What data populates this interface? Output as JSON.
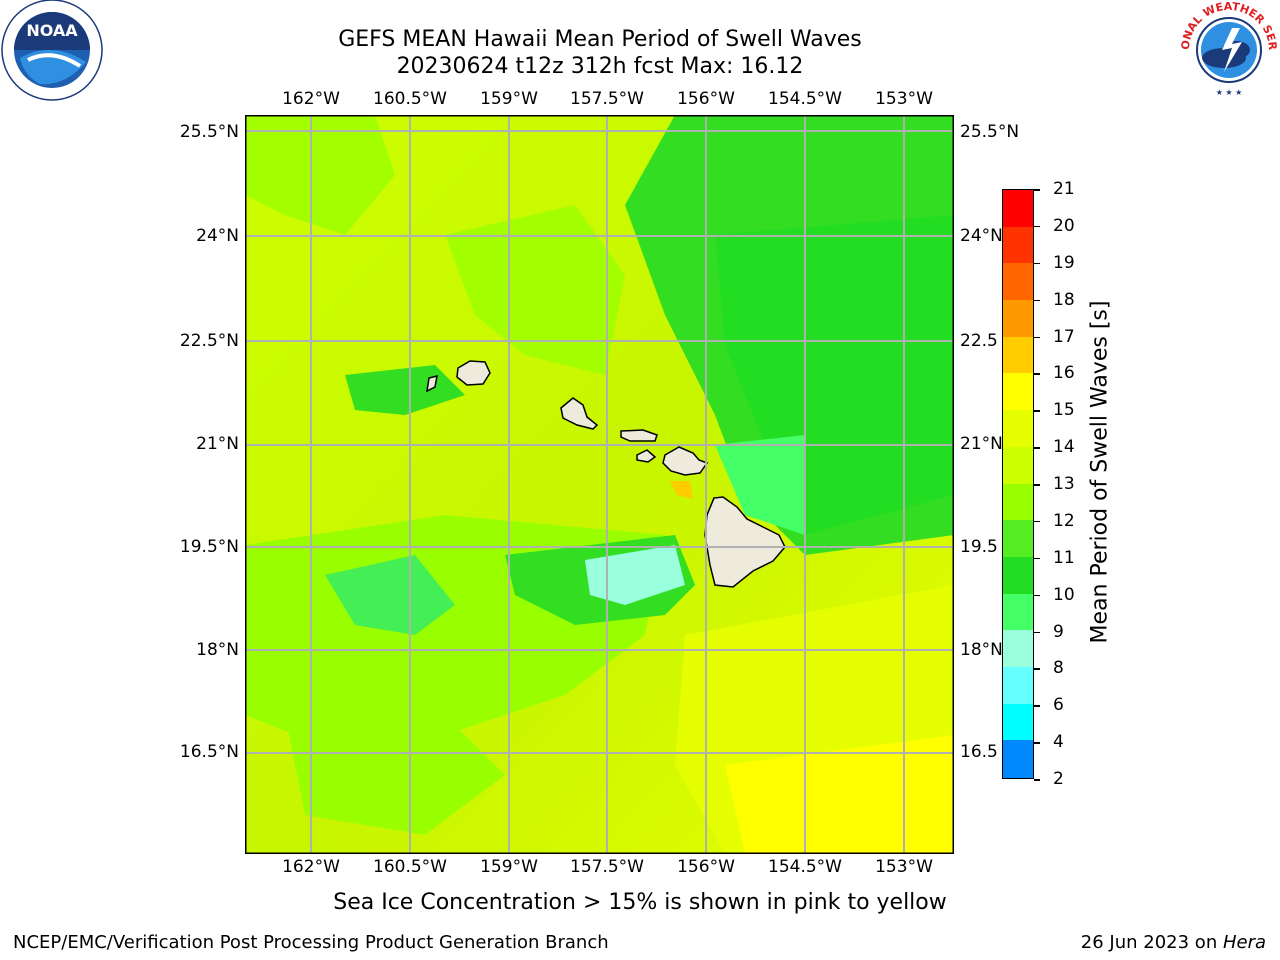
{
  "title_line1": "GEFS MEAN Hawaii Mean Period of Swell Waves",
  "title_line2": "20230624 t12z 312h fcst   Max: 16.12",
  "lon_labels": [
    "162°W",
    "160.5°W",
    "159°W",
    "157.5°W",
    "156°W",
    "154.5°W",
    "153°W"
  ],
  "lat_labels": [
    "25.5°N",
    "24°N",
    "22.5°N",
    "21°N",
    "19.5°N",
    "18°N",
    "16.5°N"
  ],
  "lat_labels_right": [
    "25.5°N",
    "24°N",
    "22.5",
    "21°N",
    "19.5",
    "18°N",
    "16.5"
  ],
  "colorbar": {
    "label": "Mean Period of Swell Waves [s]",
    "ticks": [
      "21",
      "20",
      "19",
      "18",
      "17",
      "16",
      "15",
      "14",
      "13",
      "12",
      "11",
      "10",
      "9",
      "8",
      "6",
      "4",
      "2"
    ],
    "colors": [
      "#ff0000",
      "#ff3300",
      "#ff6600",
      "#ff9900",
      "#ffcc00",
      "#ffff00",
      "#e6ff00",
      "#ccff00",
      "#99ff00",
      "#55ee22",
      "#22dd22",
      "#44ff66",
      "#99ffdd",
      "#66ffff",
      "#00ffff",
      "#0088ff",
      "#0000ff"
    ]
  },
  "caption": "Sea Ice Concentration > 15% is shown in pink to yellow",
  "footer_left": "NCEP/EMC/Verification Post Processing Product Generation Branch",
  "footer_right_date": "26 Jun 2023 on ",
  "footer_right_host": "Hera",
  "logos": {
    "left": "NOAA",
    "right": "NATIONAL WEATHER SERVICE"
  }
}
